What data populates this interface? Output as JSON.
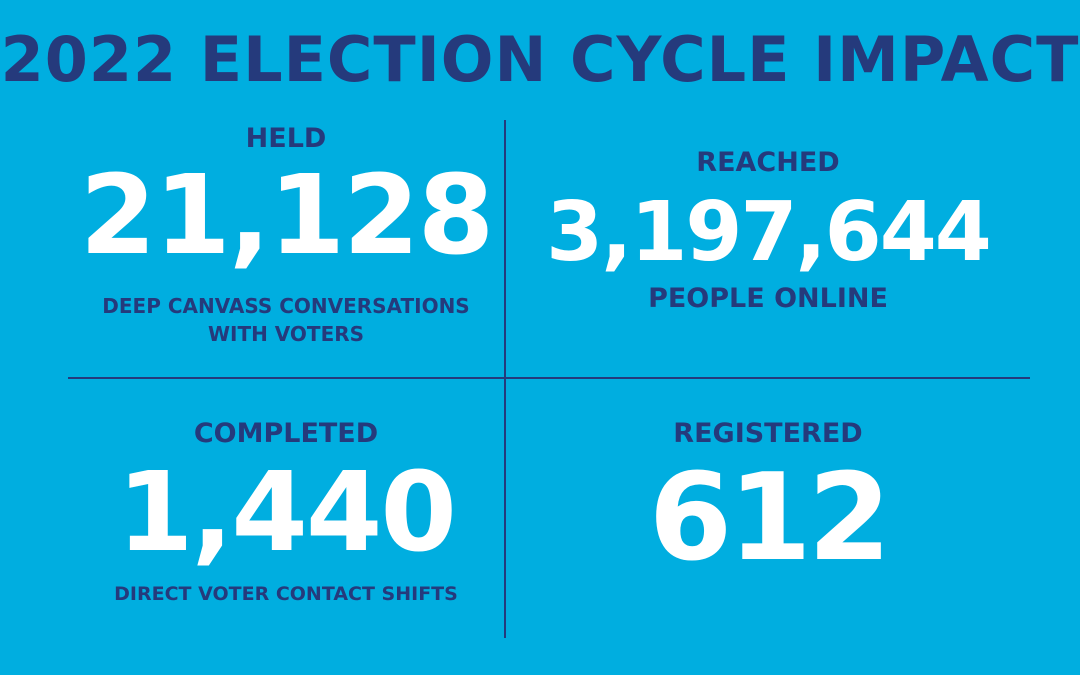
{
  "title": "2022 ELECTION CYCLE IMPACT",
  "stats": [
    {
      "label": "HELD",
      "number": "21,128",
      "description": [
        "DEEP CANVASS CONVERSATIONS",
        "WITH VOTERS"
      ]
    },
    {
      "label": "REACHED",
      "number": "3,197,644",
      "description": [
        "PEOPLE ONLINE"
      ]
    },
    {
      "label": "COMPLETED",
      "number": "1,440",
      "description": [
        "DIRECT VOTER CONTACT SHIFTS"
      ]
    },
    {
      "label": "REGISTERED",
      "number": "612",
      "description": []
    }
  ],
  "colors": {
    "background": "#00aee0",
    "navy": "#253a7c",
    "white": "#ffffff"
  }
}
